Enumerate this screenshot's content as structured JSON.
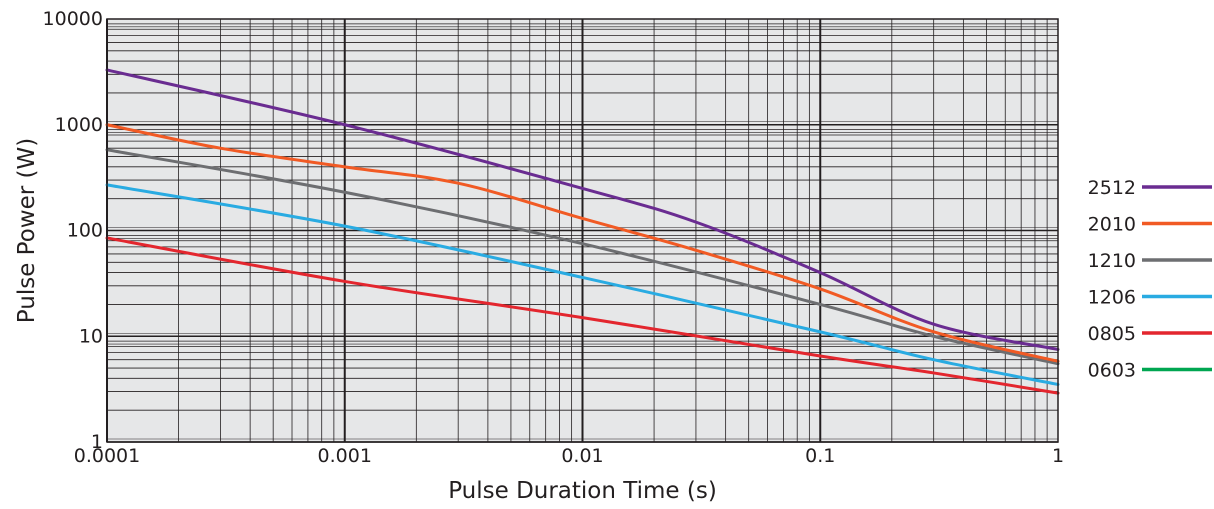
{
  "chart_data": {
    "type": "line",
    "title": "",
    "xlabel": "Pulse Duration Time (s)",
    "ylabel": "Pulse Power  (W)",
    "x_scale": "log",
    "y_scale": "log",
    "xlim": [
      0.0001,
      1
    ],
    "ylim": [
      1,
      10000
    ],
    "grid": true,
    "legend_position": "right",
    "x_tick_values": [
      0.0001,
      0.001,
      0.01,
      0.1,
      1
    ],
    "x_tick_labels": [
      "0.0001",
      "0.001",
      "0.01",
      "0.1",
      "1"
    ],
    "y_tick_values": [
      1,
      10,
      100,
      1000,
      10000
    ],
    "y_tick_labels": [
      "1",
      "10",
      "100",
      "1000",
      "10000"
    ],
    "series": [
      {
        "name": "2512",
        "color": "#6a2c91",
        "x": [
          0.0001,
          0.001,
          0.01,
          0.03,
          0.1,
          0.3,
          1
        ],
        "y": [
          3300,
          1000,
          250,
          120,
          40,
          13,
          7.5
        ]
      },
      {
        "name": "2010",
        "color": "#f15a24",
        "x": [
          0.0001,
          0.0003,
          0.001,
          0.003,
          0.01,
          0.03,
          0.1,
          0.3,
          1
        ],
        "y": [
          1000,
          600,
          400,
          280,
          130,
          65,
          28,
          11,
          5.8
        ]
      },
      {
        "name": "1210",
        "color": "#6d6e71",
        "x": [
          0.0001,
          0.001,
          0.01,
          0.1,
          0.3,
          1
        ],
        "y": [
          580,
          230,
          75,
          20,
          10,
          5.5
        ]
      },
      {
        "name": "1206",
        "color": "#29abe2",
        "x": [
          0.0001,
          0.001,
          0.01,
          0.1,
          0.3,
          1
        ],
        "y": [
          270,
          110,
          36,
          11,
          6,
          3.5
        ]
      },
      {
        "name": "0805",
        "color": "#e3262e",
        "x": [
          0.0001,
          0.001,
          0.01,
          0.1,
          0.3,
          1
        ],
        "y": [
          85,
          33,
          15,
          6.5,
          4.5,
          2.9
        ]
      },
      {
        "name": "0603",
        "color": "#00a651",
        "x": [],
        "y": []
      }
    ]
  }
}
